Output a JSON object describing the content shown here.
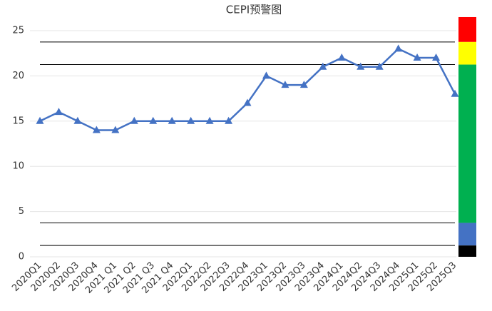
{
  "chart_data": {
    "type": "line",
    "title": "CEPI预警图",
    "categories": [
      "2020Q1",
      "2020Q2",
      "2020Q3",
      "2020Q4",
      "2021 Q1",
      "2021 Q2",
      "2021 Q3",
      "2021 Q4",
      "2022Q1",
      "2022Q2",
      "2022Q3",
      "2022Q4",
      "2023Q1",
      "2023Q2",
      "2023Q3",
      "2023Q4",
      "2024Q1",
      "2024Q2",
      "2024Q3",
      "2024Q4",
      "2025Q1",
      "2025Q2",
      "2025Q3"
    ],
    "values": [
      15,
      16,
      15,
      14,
      14,
      15,
      15,
      15,
      15,
      15,
      15,
      17,
      20,
      19,
      19,
      21,
      22,
      21,
      21,
      23,
      22,
      22,
      18
    ],
    "color": "#4472c4",
    "ylim": [
      0,
      25
    ],
    "yticks": [
      0,
      5,
      10,
      15,
      20,
      25
    ],
    "grid": true,
    "thresholds": [
      23.75,
      21.25,
      3.75,
      1.25
    ],
    "bands": [
      {
        "from": 23.75,
        "to": 26.5,
        "color": "#ff0000"
      },
      {
        "from": 21.25,
        "to": 23.75,
        "color": "#ffff00"
      },
      {
        "from": 3.75,
        "to": 21.25,
        "color": "#00b050"
      },
      {
        "from": 1.25,
        "to": 3.75,
        "color": "#4472c4"
      },
      {
        "from": 0,
        "to": 1.25,
        "color": "#000000"
      }
    ]
  }
}
